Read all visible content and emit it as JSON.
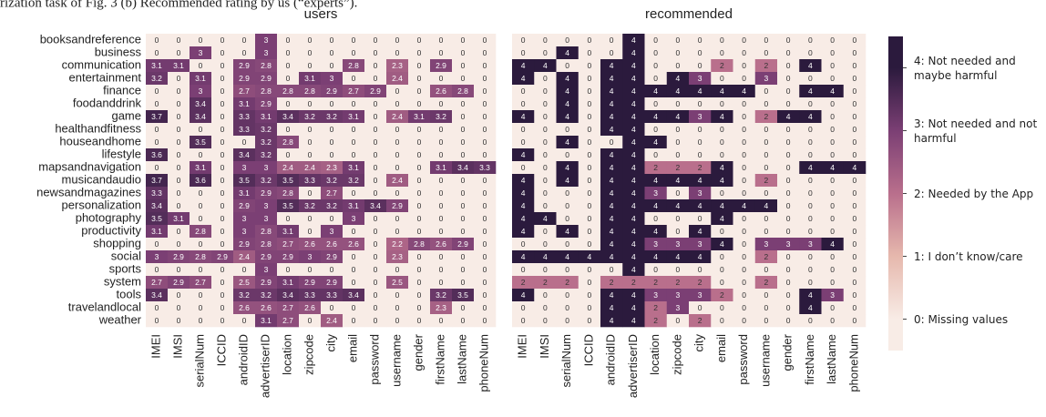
{
  "caption": "rization task of Fig. 3 (b) Recommended rating by us (“experts”).",
  "colorscale": [
    {
      "value": 0,
      "color": "#f8ece6"
    },
    {
      "value": 1,
      "color": "#e6b8ad"
    },
    {
      "value": 2,
      "color": "#b96f8c"
    },
    {
      "value": 3,
      "color": "#7b3f74"
    },
    {
      "value": 4,
      "color": "#2b1a3d"
    }
  ],
  "colorbar": {
    "lim": [
      -0.5,
      4.5
    ],
    "ticks": [
      {
        "value": 4,
        "label": "4: Not needed and maybe harmful"
      },
      {
        "value": 3,
        "label": "3: Not needed and not harmful"
      },
      {
        "value": 2,
        "label": "2: Needed by the App"
      },
      {
        "value": 1,
        "label": "1: I don’t know/care"
      },
      {
        "value": 0,
        "label": "0: Missing values"
      }
    ]
  },
  "chart_data": [
    {
      "type": "heatmap",
      "title": "users",
      "rows": [
        "booksandreference",
        "business",
        "communication",
        "entertainment",
        "finance",
        "foodanddrink",
        "game",
        "healthandfitness",
        "houseandhome",
        "lifestyle",
        "mapsandnavigation",
        "musicandaudio",
        "newsandmagazines",
        "personalization",
        "photography",
        "productivity",
        "shopping",
        "social",
        "sports",
        "system",
        "tools",
        "travelandlocal",
        "weather"
      ],
      "columns": [
        "IMEI",
        "IMSI",
        "serialNum",
        "ICCID",
        "androidID",
        "advertiserID",
        "location",
        "zipcode",
        "city",
        "email",
        "password",
        "username",
        "gender",
        "firstName",
        "lastName",
        "phoneNum"
      ],
      "values": [
        [
          0,
          0,
          0,
          0,
          0,
          3,
          0,
          0,
          0,
          0,
          0,
          0,
          0,
          0,
          0,
          0
        ],
        [
          0,
          0,
          3,
          0,
          0,
          3,
          0,
          0,
          0,
          0,
          0,
          0,
          0,
          0,
          0,
          0
        ],
        [
          3.1,
          3.1,
          0,
          0,
          2.9,
          2.8,
          0,
          0,
          0,
          2.8,
          0,
          2.3,
          0,
          2.9,
          0,
          0
        ],
        [
          3.2,
          0,
          3.1,
          0,
          2.9,
          2.9,
          0,
          3.1,
          3,
          0,
          0,
          2.4,
          0,
          0,
          0,
          0
        ],
        [
          0,
          0,
          3,
          0,
          2.7,
          2.8,
          2.8,
          2.8,
          2.9,
          2.7,
          2.9,
          0,
          0,
          2.6,
          2.8,
          0
        ],
        [
          0,
          0,
          3.4,
          0,
          3.1,
          2.9,
          0,
          0,
          0,
          0,
          0,
          0,
          0,
          0,
          0,
          0
        ],
        [
          3.7,
          0,
          3.4,
          0,
          3.3,
          3.1,
          3.4,
          3.2,
          3.2,
          3.1,
          0,
          2.4,
          3.1,
          3.2,
          0,
          0
        ],
        [
          0,
          0,
          0,
          0,
          3.3,
          3.2,
          0,
          0,
          0,
          0,
          0,
          0,
          0,
          0,
          0,
          0
        ],
        [
          0,
          0,
          3.5,
          0,
          0,
          3.2,
          2.8,
          0,
          0,
          0,
          0,
          0,
          0,
          0,
          0,
          0
        ],
        [
          3.6,
          0,
          0,
          0,
          3.4,
          3.2,
          0,
          0,
          0,
          0,
          0,
          0,
          0,
          0,
          0,
          0
        ],
        [
          0,
          0,
          3.1,
          0,
          3,
          3,
          2.4,
          2.4,
          2.3,
          3.1,
          0,
          0,
          0,
          3.1,
          3.4,
          3.3
        ],
        [
          3.7,
          0,
          3.6,
          0,
          3.5,
          3.2,
          3.5,
          3.3,
          3.2,
          3.2,
          0,
          2.4,
          0,
          0,
          0,
          0
        ],
        [
          3.3,
          0,
          0,
          0,
          3.1,
          2.9,
          2.8,
          0,
          2.7,
          0,
          0,
          0,
          0,
          0,
          0,
          0
        ],
        [
          3.4,
          0,
          0,
          0,
          2.9,
          3,
          3.5,
          3.2,
          3.2,
          3.1,
          3.4,
          2.9,
          0,
          0,
          0,
          0
        ],
        [
          3.5,
          3.1,
          0,
          0,
          3,
          3,
          0,
          0,
          0,
          3,
          0,
          0,
          0,
          0,
          0,
          0
        ],
        [
          3.1,
          0,
          2.8,
          0,
          3,
          2.8,
          3.1,
          0,
          3,
          0,
          0,
          0,
          0,
          0,
          0,
          0
        ],
        [
          0,
          0,
          0,
          0,
          2.9,
          2.8,
          2.7,
          2.6,
          2.6,
          2.6,
          0,
          2.2,
          2.8,
          2.6,
          2.9,
          0
        ],
        [
          3,
          2.9,
          2.8,
          2.9,
          2.4,
          2.9,
          2.9,
          3,
          2.9,
          0,
          0,
          2.3,
          0,
          0,
          0,
          0
        ],
        [
          0,
          0,
          0,
          0,
          0,
          3,
          0,
          0,
          0,
          0,
          0,
          0,
          0,
          0,
          0,
          0
        ],
        [
          2.7,
          2.9,
          2.7,
          0,
          2.5,
          2.9,
          3.1,
          2.9,
          2.9,
          0,
          0,
          2.5,
          0,
          0,
          0,
          0
        ],
        [
          3.4,
          0,
          0,
          0,
          3.2,
          3.2,
          3.4,
          3.3,
          3.3,
          3.4,
          0,
          0,
          0,
          3.2,
          3.5,
          0
        ],
        [
          0,
          0,
          0,
          0,
          2.6,
          2.6,
          2.7,
          2.6,
          0,
          0,
          0,
          0,
          0,
          2.3,
          0,
          0
        ],
        [
          0,
          0,
          0,
          0,
          0,
          3.1,
          2.7,
          0,
          2.4,
          0,
          0,
          0,
          0,
          0,
          0,
          0
        ]
      ]
    },
    {
      "type": "heatmap",
      "title": "recommended",
      "columns": [
        "IMEI",
        "IMSI",
        "serialNum",
        "ICCID",
        "androidID",
        "advertiserID",
        "location",
        "zipcode",
        "city",
        "email",
        "password",
        "username",
        "gender",
        "firstName",
        "lastName",
        "phoneNum"
      ],
      "values": [
        [
          0,
          0,
          0,
          0,
          0,
          4,
          0,
          0,
          0,
          0,
          0,
          0,
          0,
          0,
          0,
          0
        ],
        [
          0,
          0,
          4,
          0,
          0,
          4,
          0,
          0,
          0,
          0,
          0,
          0,
          0,
          0,
          0,
          0
        ],
        [
          4,
          4,
          0,
          0,
          4,
          4,
          0,
          0,
          0,
          2,
          0,
          2,
          0,
          4,
          0,
          0
        ],
        [
          4,
          0,
          4,
          0,
          4,
          4,
          0,
          4,
          3,
          0,
          0,
          3,
          0,
          0,
          0,
          0
        ],
        [
          0,
          0,
          4,
          0,
          4,
          4,
          4,
          4,
          4,
          4,
          4,
          0,
          0,
          4,
          4,
          0
        ],
        [
          0,
          0,
          4,
          0,
          4,
          4,
          0,
          0,
          0,
          0,
          0,
          0,
          0,
          0,
          0,
          0
        ],
        [
          4,
          0,
          4,
          0,
          4,
          4,
          4,
          4,
          3,
          4,
          0,
          2,
          4,
          4,
          0,
          0
        ],
        [
          0,
          0,
          0,
          0,
          4,
          4,
          0,
          0,
          0,
          0,
          0,
          0,
          0,
          0,
          0,
          0
        ],
        [
          0,
          0,
          4,
          0,
          0,
          4,
          4,
          0,
          0,
          0,
          0,
          0,
          0,
          0,
          0,
          0
        ],
        [
          4,
          0,
          0,
          0,
          4,
          4,
          0,
          0,
          0,
          0,
          0,
          0,
          0,
          0,
          0,
          0
        ],
        [
          0,
          0,
          4,
          0,
          4,
          4,
          2,
          2,
          2,
          4,
          0,
          0,
          0,
          4,
          4,
          4
        ],
        [
          4,
          0,
          4,
          0,
          4,
          4,
          4,
          4,
          4,
          4,
          0,
          2,
          0,
          0,
          0,
          0
        ],
        [
          4,
          0,
          0,
          0,
          4,
          4,
          3,
          0,
          3,
          0,
          0,
          0,
          0,
          0,
          0,
          0
        ],
        [
          4,
          0,
          0,
          0,
          4,
          4,
          4,
          4,
          4,
          4,
          4,
          4,
          0,
          0,
          0,
          0
        ],
        [
          4,
          4,
          0,
          0,
          4,
          4,
          0,
          0,
          0,
          4,
          0,
          0,
          0,
          0,
          0,
          0
        ],
        [
          4,
          0,
          4,
          0,
          4,
          4,
          4,
          0,
          4,
          0,
          0,
          0,
          0,
          0,
          0,
          0
        ],
        [
          0,
          0,
          0,
          0,
          4,
          4,
          3,
          3,
          3,
          4,
          0,
          3,
          3,
          3,
          4,
          0
        ],
        [
          4,
          4,
          4,
          4,
          4,
          4,
          4,
          4,
          4,
          0,
          0,
          2,
          0,
          0,
          0,
          0
        ],
        [
          0,
          0,
          0,
          0,
          0,
          4,
          0,
          0,
          0,
          0,
          0,
          0,
          0,
          0,
          0,
          0
        ],
        [
          2,
          2,
          2,
          0,
          2,
          2,
          2,
          2,
          2,
          0,
          0,
          2,
          0,
          0,
          0,
          0
        ],
        [
          4,
          0,
          0,
          0,
          4,
          4,
          3,
          3,
          3,
          2,
          0,
          0,
          0,
          4,
          3,
          0
        ],
        [
          0,
          0,
          0,
          0,
          4,
          4,
          2,
          3,
          0,
          0,
          0,
          0,
          0,
          4,
          0,
          0
        ],
        [
          0,
          0,
          0,
          0,
          4,
          4,
          2,
          0,
          2,
          0,
          0,
          0,
          0,
          0,
          0,
          0
        ]
      ]
    }
  ]
}
